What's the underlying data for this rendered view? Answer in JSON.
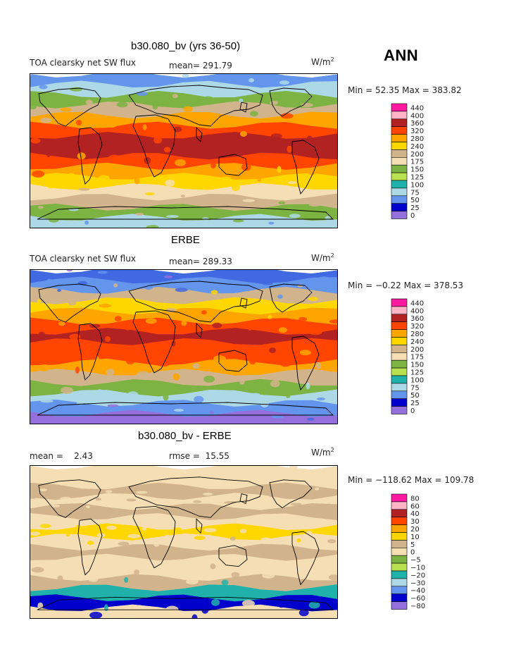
{
  "season": "ANN",
  "chart_data": [
    {
      "type": "heatmap",
      "title": "b30.080_bv (yrs 36-50)",
      "variable": "TOA clearsky net SW flux",
      "mean_label": "mean=",
      "mean": "291.79",
      "units": "W/m",
      "units_sup": "2",
      "min_max": "Min =   52.35 Max = 383.82",
      "colorbar_levels": [
        "440",
        "400",
        "360",
        "320",
        "280",
        "240",
        "200",
        "175",
        "150",
        "125",
        "100",
        "75",
        "50",
        "25",
        "0"
      ],
      "colorbar_colors": [
        "#ff1aa0",
        "#ffb3c6",
        "#b22222",
        "#ff4500",
        "#ffa500",
        "#ffd700",
        "#d2b48c",
        "#f5deb3",
        "#7cb342",
        "#b8e050",
        "#20b2aa",
        "#add8e6",
        "#6495ed",
        "#0000cd",
        "#9370db"
      ],
      "zonal_bands": [
        "#6495ed",
        "#add8e6",
        "#7cb342",
        "#d2b48c",
        "#ffa500",
        "#ff4500",
        "#b22222",
        "#b22222",
        "#ff4500",
        "#ffa500",
        "#ffd700",
        "#f5deb3",
        "#d2b48c",
        "#7cb342",
        "#add8e6"
      ]
    },
    {
      "type": "heatmap",
      "title": "ERBE",
      "variable": "TOA clearsky net SW flux",
      "mean_label": "mean=",
      "mean": "289.33",
      "units": "W/m",
      "units_sup": "2",
      "min_max": "Min =  −0.22 Max = 378.53",
      "colorbar_levels": [
        "440",
        "400",
        "360",
        "320",
        "280",
        "240",
        "200",
        "175",
        "150",
        "125",
        "100",
        "75",
        "50",
        "25",
        "0"
      ],
      "colorbar_colors": [
        "#ff1aa0",
        "#ffb3c6",
        "#b22222",
        "#ff4500",
        "#ffa500",
        "#ffd700",
        "#d2b48c",
        "#f5deb3",
        "#7cb342",
        "#b8e050",
        "#20b2aa",
        "#add8e6",
        "#6495ed",
        "#0000cd",
        "#9370db"
      ],
      "zonal_bands": [
        "#4169e1",
        "#6495ed",
        "#d2b48c",
        "#ffd700",
        "#ffa500",
        "#ff4500",
        "#b22222",
        "#ff4500",
        "#ff4500",
        "#ffa500",
        "#d2b48c",
        "#7cb342",
        "#add8e6",
        "#6495ed",
        "#9370db"
      ]
    },
    {
      "type": "heatmap",
      "title": "b30.080_bv - ERBE",
      "mean_label": "mean =",
      "mean": "2.43",
      "rmse_label": "rmse =",
      "rmse": "15.55",
      "units": "W/m",
      "units_sup": "2",
      "min_max": "Min = −118.62 Max = 109.78",
      "colorbar_levels": [
        "80",
        "60",
        "40",
        "30",
        "20",
        "10",
        "5",
        "0",
        "−5",
        "−10",
        "−20",
        "−30",
        "−40",
        "−60",
        "−80"
      ],
      "colorbar_colors": [
        "#ff1aa0",
        "#ffb3c6",
        "#b22222",
        "#ff4500",
        "#ffa500",
        "#ffd700",
        "#d2b48c",
        "#f5deb3",
        "#7cb342",
        "#b8e050",
        "#20b2aa",
        "#add8e6",
        "#6495ed",
        "#0000cd",
        "#9370db"
      ],
      "zonal_bands": [
        "#f5deb3",
        "#f5deb3",
        "#d2b48c",
        "#f5deb3",
        "#d2b48c",
        "#f5deb3",
        "#ffd700",
        "#f5deb3",
        "#d2b48c",
        "#f5deb3",
        "#f5deb3",
        "#d2b48c",
        "#20b2aa",
        "#0000cd",
        "#f5deb3"
      ]
    }
  ]
}
